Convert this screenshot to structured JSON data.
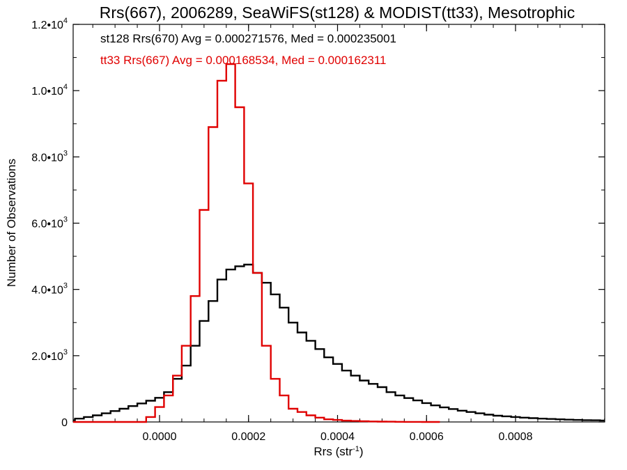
{
  "chart_data": {
    "type": "line",
    "title": "Rrs(667), 2006289, SeaWiFS(st128) & MODIST(tt33), Mesotrophic",
    "xlabel": "Rrs (str",
    "xlabel_sup": "-1",
    "xlabel_end": ")",
    "ylabel": "Number of Observations",
    "xlim": [
      -0.0002,
      0.001
    ],
    "ylim": [
      0,
      12000
    ],
    "x_ticks": [
      {
        "value": 0.0,
        "label": "0.0000"
      },
      {
        "value": 0.0002,
        "label": "0.0002"
      },
      {
        "value": 0.0004,
        "label": "0.0004"
      },
      {
        "value": 0.0006,
        "label": "0.0006"
      },
      {
        "value": 0.0008,
        "label": "0.0008"
      }
    ],
    "y_ticks": [
      {
        "value": 0,
        "mant": "0",
        "exp": ""
      },
      {
        "value": 2000,
        "mant": "2.0•10",
        "exp": "3"
      },
      {
        "value": 4000,
        "mant": "4.0•10",
        "exp": "3"
      },
      {
        "value": 6000,
        "mant": "6.0•10",
        "exp": "3"
      },
      {
        "value": 8000,
        "mant": "8.0•10",
        "exp": "3"
      },
      {
        "value": 10000,
        "mant": "1.0•10",
        "exp": "4"
      },
      {
        "value": 12000,
        "mant": "1.2•10",
        "exp": "4"
      }
    ],
    "grid": false,
    "annotations": [
      {
        "text": "st128 Rrs(670) Avg = 0.000271576, Med = 0.000235001",
        "color": "#000000"
      },
      {
        "text": "tt33 Rrs(667) Avg = 0.000168534, Med = 0.000162311",
        "color": "#e00000"
      }
    ],
    "series": [
      {
        "color": "#000000",
        "x": [
          -0.0002,
          -0.00018,
          -0.00016,
          -0.00014,
          -0.00012,
          -0.0001,
          -8e-05,
          -6e-05,
          -4e-05,
          -2e-05,
          0.0,
          2e-05,
          4e-05,
          6e-05,
          8e-05,
          0.0001,
          0.00012,
          0.00014,
          0.00016,
          0.00018,
          0.0002,
          0.00022,
          0.00024,
          0.00026,
          0.00028,
          0.0003,
          0.00032,
          0.00034,
          0.00036,
          0.00038,
          0.0004,
          0.00042,
          0.00044,
          0.00046,
          0.00048,
          0.0005,
          0.00052,
          0.00054,
          0.00056,
          0.00058,
          0.0006,
          0.00062,
          0.00064,
          0.00066,
          0.00068,
          0.0007,
          0.00072,
          0.00074,
          0.00076,
          0.00078,
          0.0008,
          0.00082,
          0.00084,
          0.00086,
          0.00088,
          0.0009,
          0.00092,
          0.00094,
          0.00096,
          0.00098,
          0.001
        ],
        "y": [
          50,
          100,
          150,
          200,
          260,
          330,
          400,
          480,
          560,
          640,
          730,
          900,
          1300,
          1700,
          2300,
          3050,
          3650,
          4300,
          4600,
          4700,
          4750,
          4500,
          4200,
          3850,
          3450,
          3000,
          2700,
          2450,
          2200,
          1950,
          1750,
          1550,
          1400,
          1250,
          1150,
          1050,
          900,
          800,
          720,
          650,
          570,
          500,
          440,
          390,
          340,
          300,
          260,
          220,
          190,
          170,
          150,
          130,
          115,
          100,
          90,
          80,
          70,
          60,
          55,
          50,
          45
        ]
      },
      {
        "color": "#e00000",
        "x": [
          -0.0002,
          -0.00018,
          -0.00016,
          -0.00014,
          -0.00012,
          -0.0001,
          -8e-05,
          -6e-05,
          -4e-05,
          -2e-05,
          0.0,
          2e-05,
          4e-05,
          6e-05,
          8e-05,
          0.0001,
          0.00012,
          0.00014,
          0.00016,
          0.00018,
          0.0002,
          0.00022,
          0.00024,
          0.00026,
          0.00028,
          0.0003,
          0.00032,
          0.00034,
          0.00036,
          0.00038,
          0.0004,
          0.00042,
          0.00044,
          0.00046,
          0.00048,
          0.0005,
          0.00052,
          0.00054,
          0.00056,
          0.00058,
          0.0006,
          0.00062
        ],
        "y": [
          0,
          0,
          0,
          0,
          0,
          0,
          0,
          0,
          0,
          150,
          450,
          800,
          1400,
          2300,
          3800,
          6400,
          8900,
          10300,
          10800,
          9500,
          7200,
          4500,
          2300,
          1300,
          800,
          400,
          300,
          200,
          130,
          80,
          60,
          40,
          30,
          20,
          15,
          10,
          8,
          5,
          3,
          2,
          1,
          0
        ]
      }
    ]
  }
}
